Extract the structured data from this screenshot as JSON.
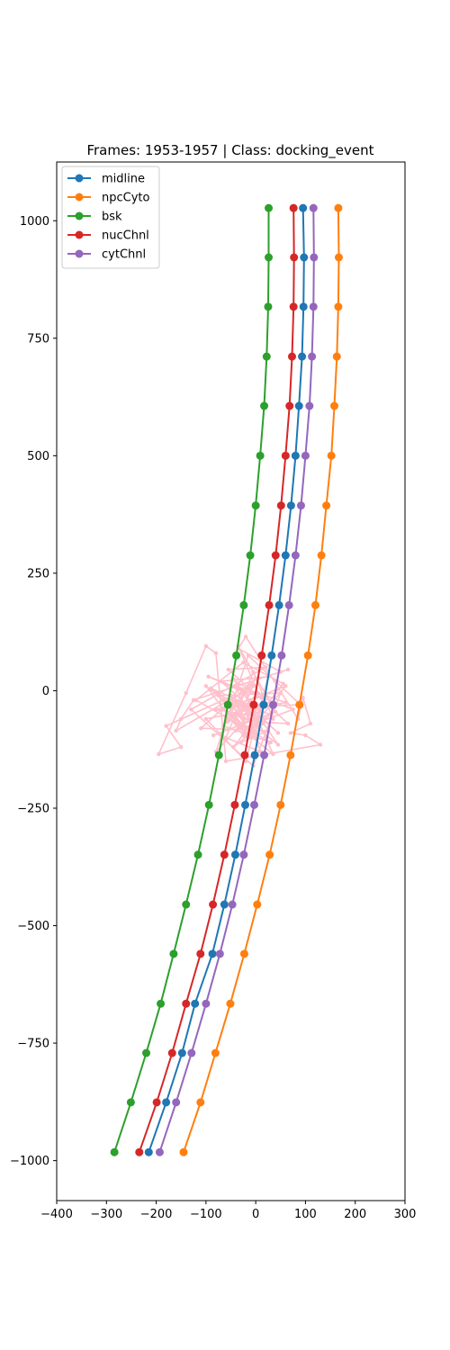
{
  "chart_data": {
    "type": "line",
    "title": "Frames: 1953-1957 | Class: docking_event",
    "xlabel": "",
    "ylabel": "",
    "xlim": [
      -400,
      300
    ],
    "ylim": [
      -1085,
      1125
    ],
    "xticks": [
      -400,
      -300,
      -200,
      -100,
      0,
      100,
      200,
      300
    ],
    "yticks": [
      -1000,
      -750,
      -500,
      -250,
      0,
      250,
      500,
      750,
      1000
    ],
    "xtick_labels": [
      "−400",
      "−300",
      "−200",
      "−100",
      "0",
      "100",
      "200",
      "300"
    ],
    "ytick_labels": [
      "−1000",
      "−750",
      "−500",
      "−250",
      "0",
      "250",
      "500",
      "750",
      "1000"
    ],
    "grid": false,
    "legend_position": "top-left",
    "series": [
      {
        "name": "midline",
        "color": "#1f77b4",
        "points": [
          [
            95,
            1027
          ],
          [
            97,
            922
          ],
          [
            96,
            817
          ],
          [
            93,
            711
          ],
          [
            87,
            606
          ],
          [
            80,
            500
          ],
          [
            71,
            394
          ],
          [
            60,
            288
          ],
          [
            47,
            182
          ],
          [
            32,
            75
          ],
          [
            16,
            -30
          ],
          [
            -2,
            -137
          ],
          [
            -21,
            -243
          ],
          [
            -41,
            -349
          ],
          [
            -63,
            -455
          ],
          [
            -87,
            -560
          ],
          [
            -122,
            -666
          ],
          [
            -148,
            -771
          ],
          [
            -180,
            -876
          ],
          [
            -215,
            -982
          ]
        ]
      },
      {
        "name": "npcCyto",
        "color": "#ff7f0e",
        "points": [
          [
            166,
            1027
          ],
          [
            167,
            922
          ],
          [
            166,
            817
          ],
          [
            163,
            711
          ],
          [
            158,
            606
          ],
          [
            152,
            500
          ],
          [
            142,
            394
          ],
          [
            132,
            288
          ],
          [
            120,
            182
          ],
          [
            105,
            75
          ],
          [
            88,
            -30
          ],
          [
            70,
            -137
          ],
          [
            50,
            -243
          ],
          [
            28,
            -349
          ],
          [
            3,
            -455
          ],
          [
            -23,
            -560
          ],
          [
            -51,
            -666
          ],
          [
            -81,
            -771
          ],
          [
            -111,
            -876
          ],
          [
            -145,
            -982
          ]
        ]
      },
      {
        "name": "bsk",
        "color": "#2ca02c",
        "points": [
          [
            26,
            1027
          ],
          [
            26,
            922
          ],
          [
            25,
            817
          ],
          [
            22,
            711
          ],
          [
            17,
            606
          ],
          [
            9,
            500
          ],
          [
            0,
            394
          ],
          [
            -11,
            288
          ],
          [
            -24,
            182
          ],
          [
            -39,
            75
          ],
          [
            -56,
            -30
          ],
          [
            -74,
            -137
          ],
          [
            -94,
            -243
          ],
          [
            -116,
            -349
          ],
          [
            -140,
            -455
          ],
          [
            -165,
            -560
          ],
          [
            -191,
            -666
          ],
          [
            -220,
            -771
          ],
          [
            -251,
            -876
          ],
          [
            -284,
            -982
          ]
        ]
      },
      {
        "name": "nucChnl",
        "color": "#d62728",
        "points": [
          [
            76,
            1027
          ],
          [
            77,
            922
          ],
          [
            76,
            817
          ],
          [
            73,
            711
          ],
          [
            68,
            606
          ],
          [
            60,
            500
          ],
          [
            51,
            394
          ],
          [
            40,
            288
          ],
          [
            27,
            182
          ],
          [
            12,
            75
          ],
          [
            -4,
            -30
          ],
          [
            -22,
            -137
          ],
          [
            -42,
            -243
          ],
          [
            -63,
            -349
          ],
          [
            -86,
            -455
          ],
          [
            -111,
            -560
          ],
          [
            -140,
            -666
          ],
          [
            -168,
            -771
          ],
          [
            -199,
            -876
          ],
          [
            -234,
            -982
          ]
        ]
      },
      {
        "name": "cytChnl",
        "color": "#9467bd",
        "points": [
          [
            116,
            1027
          ],
          [
            117,
            922
          ],
          [
            116,
            817
          ],
          [
            113,
            711
          ],
          [
            108,
            606
          ],
          [
            100,
            500
          ],
          [
            91,
            394
          ],
          [
            80,
            288
          ],
          [
            67,
            182
          ],
          [
            52,
            75
          ],
          [
            35,
            -30
          ],
          [
            17,
            -137
          ],
          [
            -3,
            -243
          ],
          [
            -24,
            -349
          ],
          [
            -47,
            -455
          ],
          [
            -72,
            -560
          ],
          [
            -100,
            -666
          ],
          [
            -129,
            -771
          ],
          [
            -160,
            -876
          ],
          [
            -193,
            -982
          ]
        ]
      }
    ],
    "trajectory": {
      "color": "#ffc0cb",
      "points": [
        [
          -30,
          -55
        ],
        [
          -55,
          -20
        ],
        [
          -10,
          -90
        ],
        [
          20,
          -10
        ],
        [
          -80,
          -40
        ],
        [
          35,
          -60
        ],
        [
          -5,
          40
        ],
        [
          -60,
          -100
        ],
        [
          10,
          -130
        ],
        [
          -40,
          10
        ],
        [
          60,
          -25
        ],
        [
          -100,
          -60
        ],
        [
          -20,
          -150
        ],
        [
          25,
          30
        ],
        [
          -70,
          20
        ],
        [
          45,
          -90
        ],
        [
          -15,
          -30
        ],
        [
          -90,
          5
        ],
        [
          15,
          -70
        ],
        [
          -45,
          -120
        ],
        [
          55,
          15
        ],
        [
          -25,
          60
        ],
        [
          -120,
          -20
        ],
        [
          30,
          -110
        ],
        [
          -65,
          -75
        ],
        [
          5,
          -5
        ],
        [
          -35,
          95
        ],
        [
          40,
          -45
        ],
        [
          -85,
          -95
        ],
        [
          -10,
          -65
        ],
        [
          65,
          -70
        ],
        [
          -55,
          45
        ],
        [
          20,
          50
        ],
        [
          -130,
          -40
        ],
        [
          -5,
          -160
        ],
        [
          50,
          -5
        ],
        [
          -75,
          -10
        ],
        [
          10,
          -40
        ],
        [
          -40,
          -85
        ],
        [
          75,
          -40
        ],
        [
          -95,
          30
        ],
        [
          -20,
          -5
        ],
        [
          35,
          -135
        ],
        [
          -60,
          -55
        ],
        [
          0,
          25
        ],
        [
          -110,
          -80
        ],
        [
          25,
          -85
        ],
        [
          -30,
          -110
        ],
        [
          60,
          10
        ],
        [
          -50,
          -35
        ],
        [
          90,
          -30
        ],
        [
          -15,
          75
        ],
        [
          -80,
          -130
        ],
        [
          15,
          -20
        ],
        [
          -45,
          25
        ],
        [
          45,
          -115
        ],
        [
          -100,
          10
        ],
        [
          -25,
          -95
        ],
        [
          30,
          -50
        ],
        [
          -65,
          -20
        ],
        [
          -180,
          -75
        ],
        [
          -150,
          -120
        ],
        [
          -195,
          -135
        ],
        [
          -140,
          -5
        ],
        [
          -100,
          95
        ],
        [
          -80,
          80
        ],
        [
          -60,
          -150
        ],
        [
          130,
          -115
        ],
        [
          100,
          -95
        ],
        [
          70,
          -90
        ],
        [
          110,
          -70
        ],
        [
          95,
          -15
        ],
        [
          85,
          -60
        ],
        [
          -20,
          115
        ],
        [
          -35,
          90
        ],
        [
          50,
          40
        ],
        [
          65,
          45
        ],
        [
          -125,
          -20
        ],
        [
          -150,
          -60
        ],
        [
          -160,
          -85
        ],
        [
          -5,
          10
        ],
        [
          -30,
          -45
        ],
        [
          -55,
          -65
        ],
        [
          -40,
          -25
        ],
        [
          -15,
          -40
        ],
        [
          5,
          -75
        ],
        [
          -10,
          -20
        ],
        [
          -25,
          -60
        ],
        [
          -45,
          -50
        ],
        [
          -20,
          -80
        ],
        [
          -35,
          -35
        ],
        [
          -5,
          -50
        ],
        [
          -50,
          -10
        ],
        [
          10,
          -55
        ],
        [
          -30,
          -70
        ],
        [
          -60,
          -40
        ],
        [
          -15,
          -100
        ],
        [
          -40,
          -60
        ],
        [
          0,
          -90
        ],
        [
          -25,
          -30
        ]
      ]
    }
  }
}
